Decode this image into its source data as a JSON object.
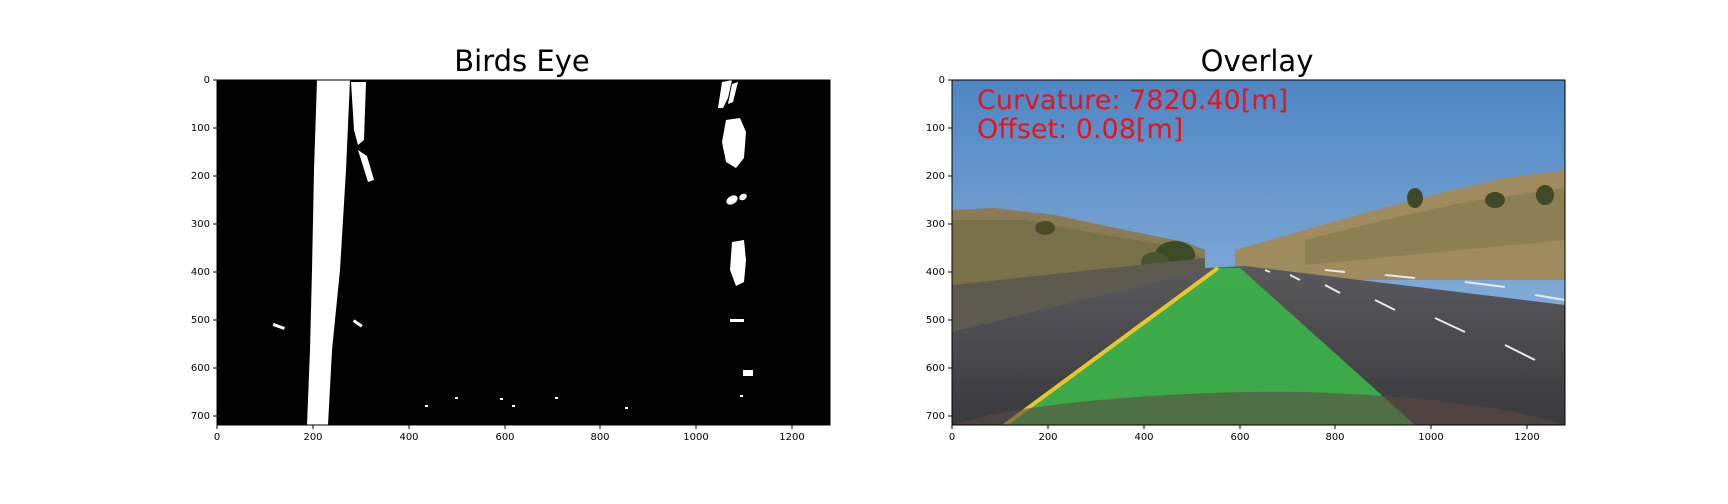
{
  "figure": {
    "panels": [
      {
        "title": "Birds Eye",
        "x_ticks": [
          "0",
          "200",
          "400",
          "600",
          "800",
          "1000",
          "1200"
        ],
        "y_ticks": [
          "0",
          "100",
          "200",
          "300",
          "400",
          "500",
          "600",
          "700"
        ],
        "image_description": "binary warped lane mask"
      },
      {
        "title": "Overlay",
        "x_ticks": [
          "0",
          "200",
          "400",
          "600",
          "800",
          "1000",
          "1200"
        ],
        "y_ticks": [
          "0",
          "100",
          "200",
          "300",
          "400",
          "500",
          "600",
          "700"
        ],
        "overlay_lines": [
          "Curvature: 7820.40[m]",
          "Offset: 0.08[m]"
        ],
        "overlay_color": "#e8141b",
        "lane_fill_color": "#3db34a"
      }
    ]
  }
}
